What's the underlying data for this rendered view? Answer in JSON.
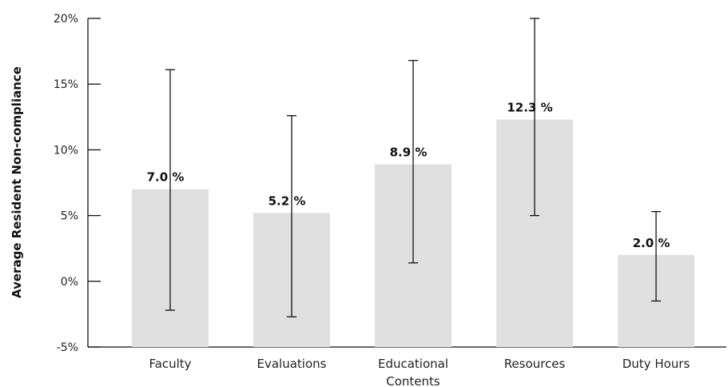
{
  "chart_data": {
    "type": "bar",
    "title": "",
    "xlabel": "",
    "ylabel": "Average Resident Non-compliance",
    "ylim": [
      -5,
      20
    ],
    "yticks": [
      "-5%",
      "0%",
      "5%",
      "10%",
      "15%",
      "20%"
    ],
    "ytick_values": [
      -5,
      0,
      5,
      10,
      15,
      20
    ],
    "categories": [
      [
        "Faculty"
      ],
      [
        "Evaluations"
      ],
      [
        "Educational",
        "Contents"
      ],
      [
        "Resources"
      ],
      [
        "Duty Hours"
      ]
    ],
    "values": [
      7.0,
      5.2,
      8.9,
      12.3,
      2.0
    ],
    "value_labels": [
      "7.0 %",
      "5.2 %",
      "8.9 %",
      "12.3 %",
      "2.0 %"
    ],
    "error_low": [
      -2.2,
      -2.7,
      1.4,
      5.0,
      -1.5
    ],
    "error_high": [
      16.1,
      12.6,
      16.8,
      20.0,
      5.3
    ],
    "grid": false,
    "colors": {
      "bar": "#e0e0e0",
      "axis": "#111111",
      "error": "#111111"
    }
  }
}
